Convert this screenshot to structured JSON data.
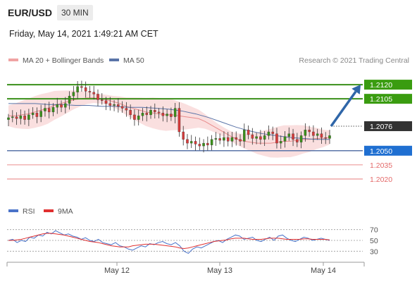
{
  "header": {
    "symbol": "EUR/USD",
    "timeframe": "30 MIN",
    "datetime": "Friday, May 14, 2021 1:49:21 AM CET"
  },
  "legend": {
    "ma20_bb_label": "MA 20 + Bollinger Bands",
    "ma50_label": "MA 50",
    "rsi_label": "RSI",
    "ma9_label": "9MA",
    "credit": "Research © 2021 Trading Central"
  },
  "colors": {
    "bb_band": "#f7c9c9",
    "ma20": "#e88c8c",
    "ma50": "#5a74a8",
    "support_line": "#5a74a8",
    "resistance_line": "#3a8f1a",
    "pivot_line": "#e46a6a",
    "current_price_box": "#333333",
    "support_box": "#1f6fd1",
    "resistance_box": "#3a9c10",
    "arrow": "#2f66a8",
    "candle_up": "#3a8f1a",
    "candle_down": "#d43b3b",
    "rsi_line": "#4a73c9",
    "rsi_ma": "#e03030"
  },
  "chart_data": [
    {
      "type": "candlestick",
      "title": "",
      "x_tick_labels": [
        "May 12",
        "May 13",
        "May 14"
      ],
      "ylim": [
        1.2008,
        1.2135
      ],
      "current_price": 1.2076,
      "levels": [
        {
          "value": 1.212,
          "label": "1.2120",
          "kind": "resistance"
        },
        {
          "value": 1.2105,
          "label": "1.2105",
          "kind": "resistance"
        },
        {
          "value": 1.2076,
          "label": "1.2076",
          "kind": "current"
        },
        {
          "value": 1.205,
          "label": "1.2050",
          "kind": "support"
        },
        {
          "value": 1.2035,
          "label": "1.2035",
          "kind": "pivot"
        },
        {
          "value": 1.202,
          "label": "1.2020",
          "kind": "pivot"
        }
      ],
      "forecast_arrow": {
        "from": 1.2076,
        "to": 1.212
      },
      "series": [
        {
          "name": "Price",
          "close": [
            1.2085,
            1.2086,
            1.2084,
            1.2087,
            1.2083,
            1.2088,
            1.209,
            1.2086,
            1.2092,
            1.2095,
            1.2091,
            1.2096,
            1.2099,
            1.2096,
            1.21,
            1.2108,
            1.2112,
            1.2118,
            1.2117,
            1.2113,
            1.2112,
            1.211,
            1.2104,
            1.2103,
            1.21,
            1.2098,
            1.2099,
            1.2097,
            1.2095,
            1.2093,
            1.2088,
            1.2083,
            1.2087,
            1.209,
            1.2088,
            1.2093,
            1.2091,
            1.209,
            1.2087,
            1.2089,
            1.2086,
            1.2095,
            1.207,
            1.2062,
            1.2058,
            1.206,
            1.2057,
            1.2055,
            1.2058,
            1.2056,
            1.2062,
            1.2063,
            1.2061,
            1.2064,
            1.206,
            1.2064,
            1.2062,
            1.206,
            1.2072,
            1.2067,
            1.2063,
            1.2065,
            1.2062,
            1.2066,
            1.207,
            1.2068,
            1.2058,
            1.206,
            1.2065,
            1.2068,
            1.2062,
            1.2059,
            1.2066,
            1.2072,
            1.207,
            1.2066,
            1.2068,
            1.2064,
            1.2063,
            1.2066
          ]
        },
        {
          "name": "MA 20",
          "values": [
            1.2087,
            1.2087,
            1.2088,
            1.2089,
            1.2091,
            1.2093,
            1.2095,
            1.2098,
            1.21,
            1.2102,
            1.2104,
            1.2105,
            1.2106,
            1.2106,
            1.2105,
            1.2104,
            1.2102,
            1.21,
            1.2097,
            1.2095,
            1.2093,
            1.2091,
            1.209,
            1.2089,
            1.2088,
            1.2088,
            1.2087,
            1.2086,
            1.2085,
            1.2084,
            1.2081,
            1.2077,
            1.2073,
            1.2069,
            1.2065,
            1.2062,
            1.206,
            1.2059,
            1.2058,
            1.2058,
            1.2058,
            1.2059,
            1.206,
            1.206,
            1.2061,
            1.2062,
            1.2062,
            1.2063,
            1.2063,
            1.2064
          ]
        },
        {
          "name": "MA 50",
          "values": [
            1.21,
            1.21,
            1.21,
            1.2099,
            1.2099,
            1.2098,
            1.2098,
            1.2097,
            1.2097,
            1.2096,
            1.2096,
            1.2095,
            1.2094,
            1.2092,
            1.2089,
            1.2085,
            1.208,
            1.2075,
            1.2071,
            1.2068,
            1.2066,
            1.2064,
            1.2063,
            1.2062,
            1.2062
          ]
        }
      ]
    },
    {
      "type": "line",
      "title": "",
      "ylim": [
        20,
        80
      ],
      "y_tick_labels": [
        "70",
        "50",
        "30"
      ],
      "y_ticks": [
        70,
        50,
        30
      ],
      "series": [
        {
          "name": "RSI",
          "values": [
            50,
            52,
            46,
            50,
            48,
            56,
            54,
            60,
            58,
            65,
            62,
            68,
            64,
            60,
            62,
            58,
            56,
            52,
            55,
            50,
            48,
            52,
            46,
            44,
            42,
            46,
            40,
            38,
            34,
            32,
            36,
            40,
            38,
            44,
            42,
            46,
            48,
            44,
            42,
            46,
            40,
            30,
            26,
            34,
            38,
            36,
            40,
            44,
            48,
            50,
            46,
            52,
            56,
            60,
            58,
            52,
            54,
            56,
            50,
            48,
            52,
            56,
            50,
            58,
            60,
            54,
            50,
            48,
            52,
            56,
            54,
            50,
            52,
            54,
            52,
            50
          ]
        },
        {
          "name": "9MA",
          "values": [
            50,
            50,
            51,
            52,
            54,
            56,
            58,
            60,
            62,
            63,
            63,
            62,
            61,
            60,
            58,
            56,
            54,
            52,
            50,
            48,
            47,
            46,
            44,
            42,
            40,
            39,
            38,
            38,
            38,
            40,
            41,
            42,
            43,
            43,
            43,
            42,
            41,
            40,
            39,
            38,
            36,
            35,
            36,
            38,
            40,
            42,
            44,
            46,
            48,
            49,
            50,
            51,
            53,
            54,
            54,
            54,
            53,
            52,
            52,
            52,
            53,
            54,
            54,
            54,
            53,
            52,
            52,
            52,
            52,
            53,
            53,
            52,
            52,
            52,
            52,
            51
          ]
        }
      ]
    }
  ]
}
